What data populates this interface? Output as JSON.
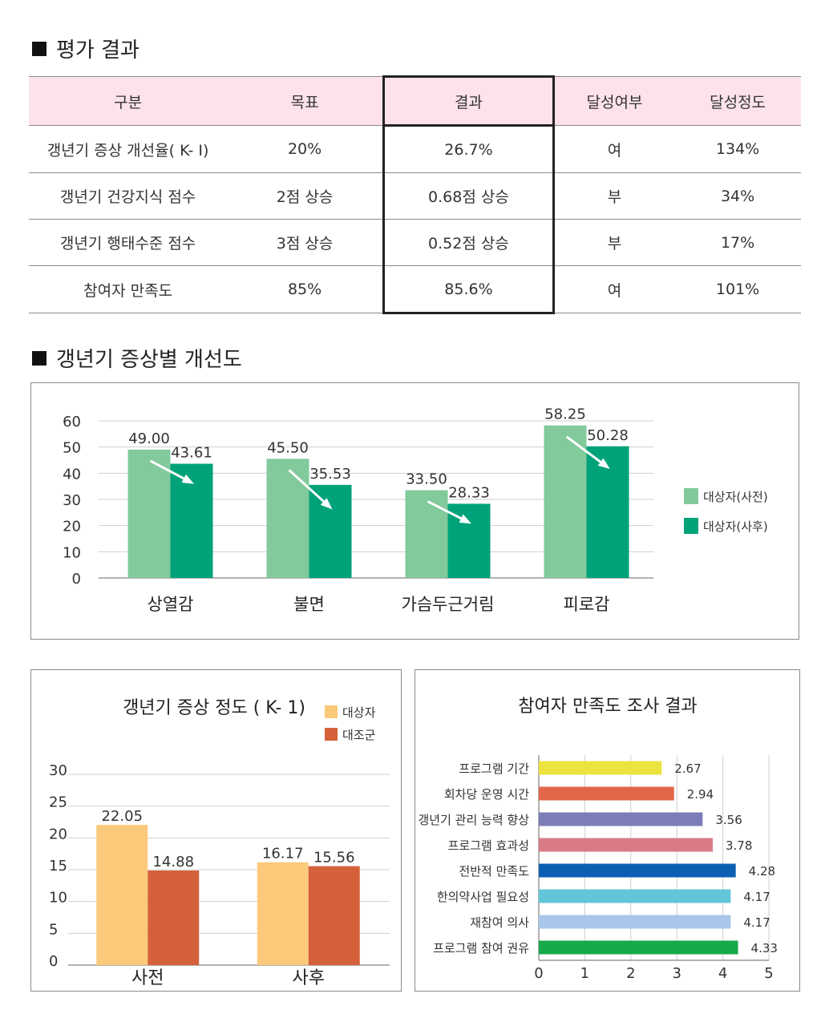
{
  "sections": {
    "eval_title": "평가 결과",
    "chart1_title": "갱년기 증상별 개선도"
  },
  "table": {
    "headers": [
      "구분",
      "목표",
      "결과",
      "달성여부",
      "달성정도"
    ],
    "rows": [
      [
        "갱년기 증상 개선율( K- I)",
        "20%",
        "26.7%",
        "여",
        "134%"
      ],
      [
        "갱년기 건강지식 점수",
        "2점 상승",
        "0.68점 상승",
        "부",
        "34%"
      ],
      [
        "갱년기 행태수준 점수",
        "3점 상승",
        "0.52점 상승",
        "부",
        "17%"
      ],
      [
        "참여자 만족도",
        "85%",
        "85.6%",
        "여",
        "101%"
      ]
    ]
  },
  "colors": {
    "light_green": "#82c99c",
    "dark_green": "#00a27a",
    "yellow": "#fbc97a",
    "orange": "#d5613a",
    "table_header": "#fde2ea"
  },
  "chart_data": [
    {
      "type": "bar",
      "categories": [
        "상열감",
        "불면",
        "가슴두근거림",
        "피로감"
      ],
      "series": [
        {
          "name": "대상자(사전)",
          "values": [
            49.0,
            45.5,
            33.5,
            58.25
          ],
          "labels": [
            "49.00",
            "45.50",
            "33.50",
            "58.25"
          ]
        },
        {
          "name": "대상자(사후)",
          "values": [
            43.61,
            35.53,
            28.33,
            50.28
          ],
          "labels": [
            "43.61",
            "35.53",
            "28.33",
            "50.28"
          ]
        }
      ],
      "yticks": [
        "0",
        "10",
        "20",
        "30",
        "40",
        "50",
        "60"
      ],
      "ylim": [
        0,
        60
      ],
      "legend": "right",
      "grid": true
    },
    {
      "type": "bar",
      "title": "갱년기 증상 정도 ( K- 1)",
      "categories": [
        "사전",
        "사후"
      ],
      "series": [
        {
          "name": "대상자",
          "values": [
            22.05,
            16.17
          ],
          "labels": [
            "22.05",
            "16.17"
          ]
        },
        {
          "name": "대조군",
          "values": [
            14.88,
            15.56
          ],
          "labels": [
            "14.88",
            "15.56"
          ]
        }
      ],
      "yticks": [
        "0",
        "5",
        "10",
        "15",
        "20",
        "25",
        "30"
      ],
      "ylim": [
        0,
        30
      ],
      "legend": "top-right",
      "grid": true
    },
    {
      "type": "bar",
      "orientation": "horizontal",
      "title": "참여자 만족도 조사 결과",
      "categories": [
        "프로그램 기간",
        "회차당 운영 시간",
        "갱년기 관리 능력 향상",
        "프로그램 효과성",
        "전반적 만족도",
        "한의약사업 필요성",
        "재참여 의사",
        "프로그램 참여 권유"
      ],
      "values": [
        2.67,
        2.94,
        3.56,
        3.78,
        4.28,
        4.17,
        4.17,
        4.33
      ],
      "labels": [
        "2.67",
        "2.94",
        "3.56",
        "3.78",
        "4.28",
        "4.17",
        "4.17",
        "4.33"
      ],
      "bar_colors": [
        "#ede33e",
        "#e2674a",
        "#7c7cb8",
        "#d97a85",
        "#0b5fb3",
        "#62c6d9",
        "#a9c7ea",
        "#17a94a"
      ],
      "xticks": [
        "0",
        "1",
        "2",
        "3",
        "4",
        "5"
      ],
      "xlim": [
        0,
        5
      ],
      "grid": true
    }
  ]
}
